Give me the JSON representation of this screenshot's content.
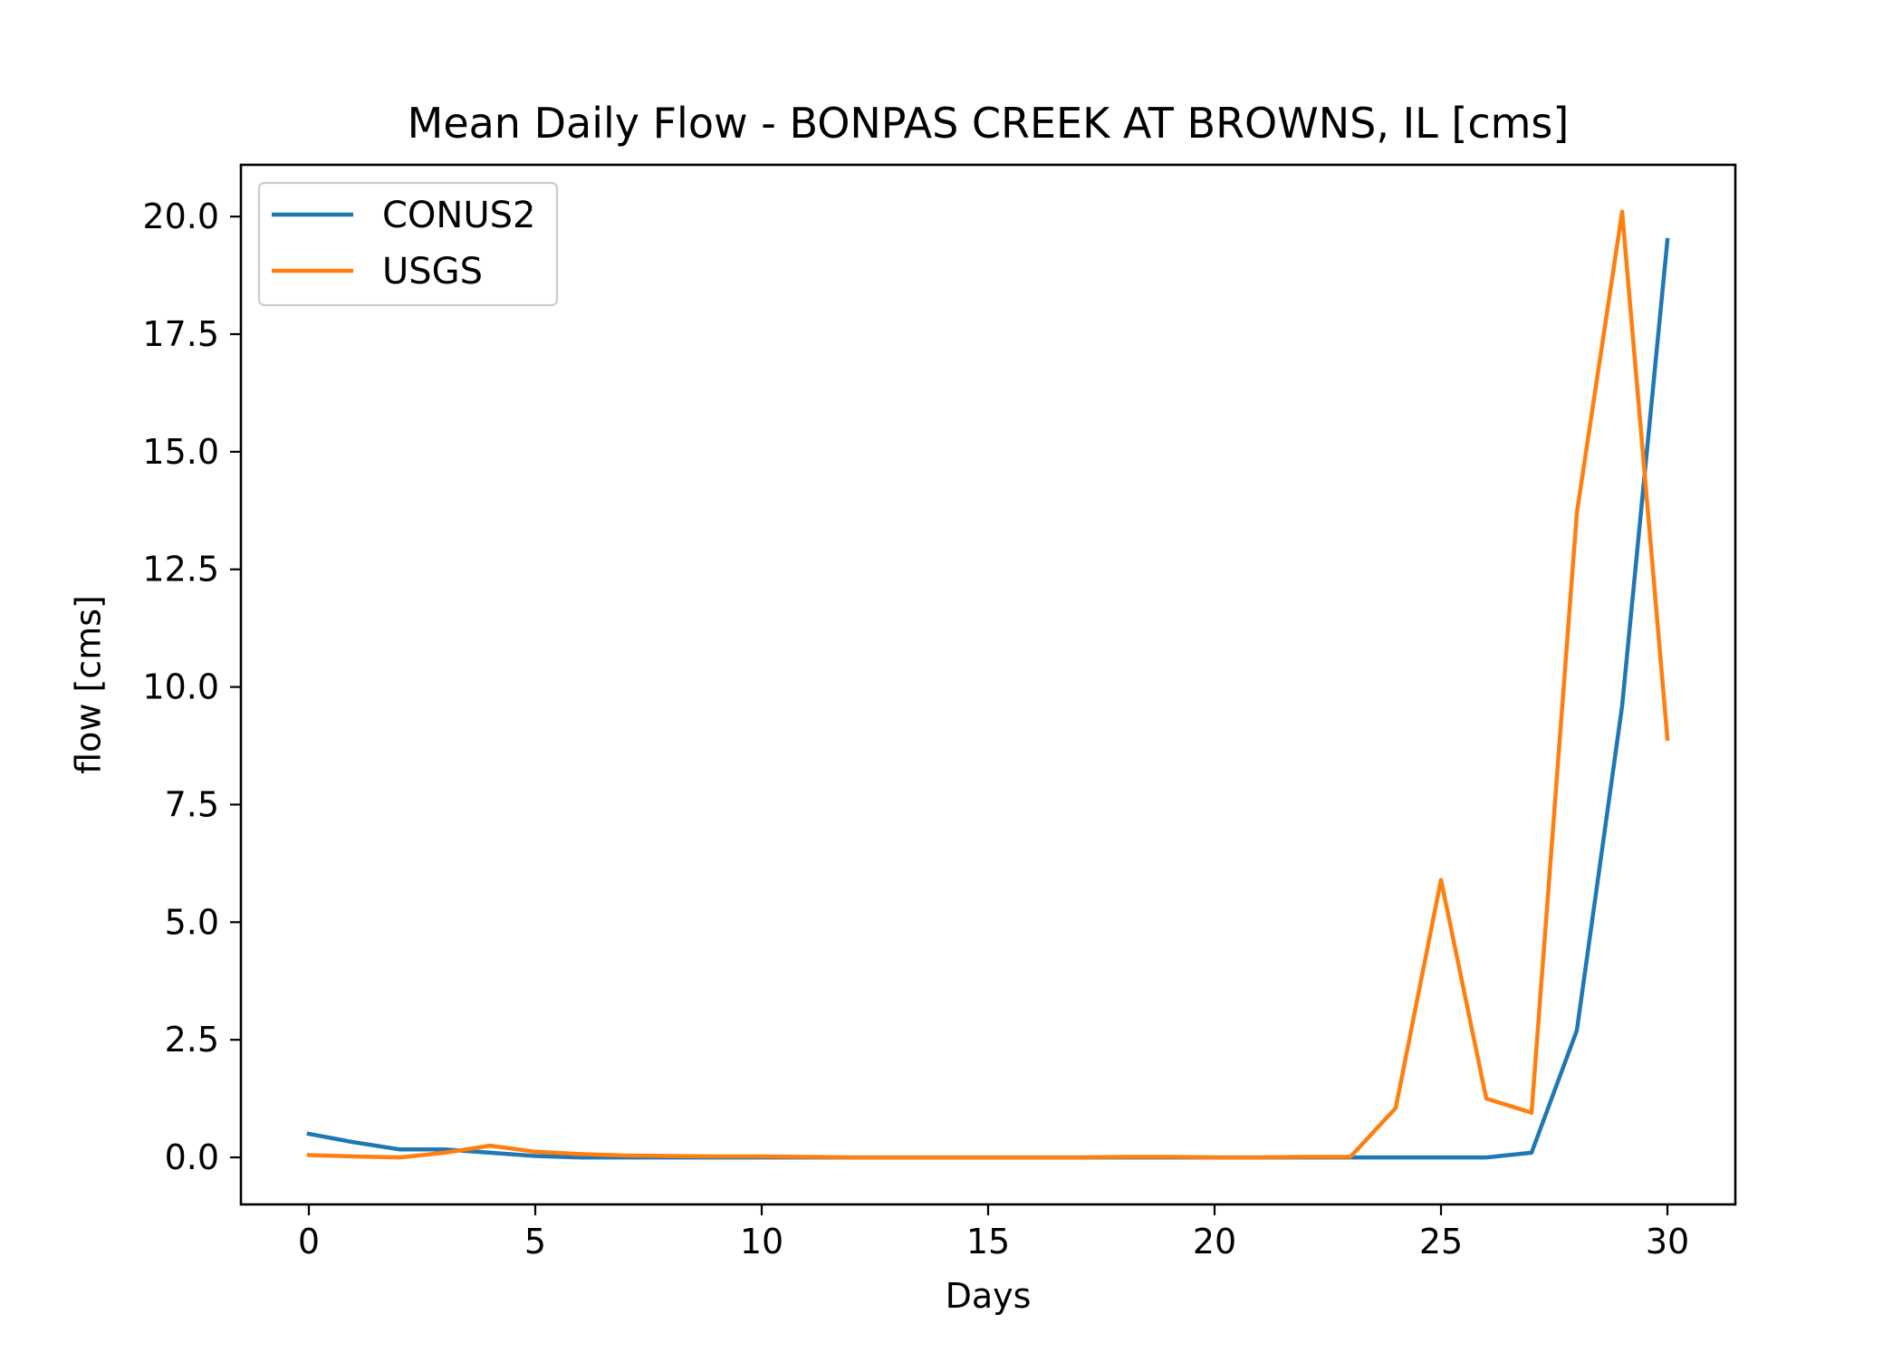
{
  "chart_data": {
    "type": "line",
    "title": "Mean Daily Flow - BONPAS CREEK AT BROWNS, IL [cms]",
    "xlabel": "Days",
    "ylabel": "flow [cms]",
    "xlim": [
      -1.5,
      31.5
    ],
    "ylim": [
      -1.0,
      21.1
    ],
    "x_ticks": [
      0,
      5,
      10,
      15,
      20,
      25,
      30
    ],
    "x_tick_labels": [
      "0",
      "5",
      "10",
      "15",
      "20",
      "25",
      "30"
    ],
    "y_ticks": [
      0.0,
      2.5,
      5.0,
      7.5,
      10.0,
      12.5,
      15.0,
      17.5,
      20.0
    ],
    "y_tick_labels": [
      "0.0",
      "2.5",
      "5.0",
      "7.5",
      "10.0",
      "12.5",
      "15.0",
      "17.5",
      "20.0"
    ],
    "grid": false,
    "legend_position": "upper-left",
    "x": [
      0,
      1,
      2,
      3,
      4,
      5,
      6,
      7,
      8,
      9,
      10,
      11,
      12,
      13,
      14,
      15,
      16,
      17,
      18,
      19,
      20,
      21,
      22,
      23,
      24,
      25,
      26,
      27,
      28,
      29,
      30
    ],
    "series": [
      {
        "name": "CONUS2",
        "color": "#1f77b4",
        "values": [
          0.5,
          0.32,
          0.17,
          0.17,
          0.1,
          0.03,
          0.0,
          0.0,
          0.0,
          0.0,
          0.0,
          0.0,
          0.0,
          0.0,
          0.0,
          0.0,
          0.0,
          0.0,
          0.0,
          0.0,
          0.0,
          0.0,
          0.0,
          0.0,
          0.0,
          0.0,
          0.0,
          0.1,
          2.7,
          9.6,
          19.5
        ]
      },
      {
        "name": "USGS",
        "color": "#ff7f0e",
        "values": [
          0.05,
          0.02,
          0.0,
          0.1,
          0.25,
          0.12,
          0.07,
          0.04,
          0.03,
          0.02,
          0.02,
          0.01,
          0.0,
          0.0,
          0.0,
          0.0,
          0.0,
          0.0,
          0.01,
          0.01,
          0.0,
          0.0,
          0.01,
          0.01,
          1.05,
          5.9,
          1.25,
          0.95,
          13.7,
          20.1,
          8.9
        ]
      }
    ]
  }
}
